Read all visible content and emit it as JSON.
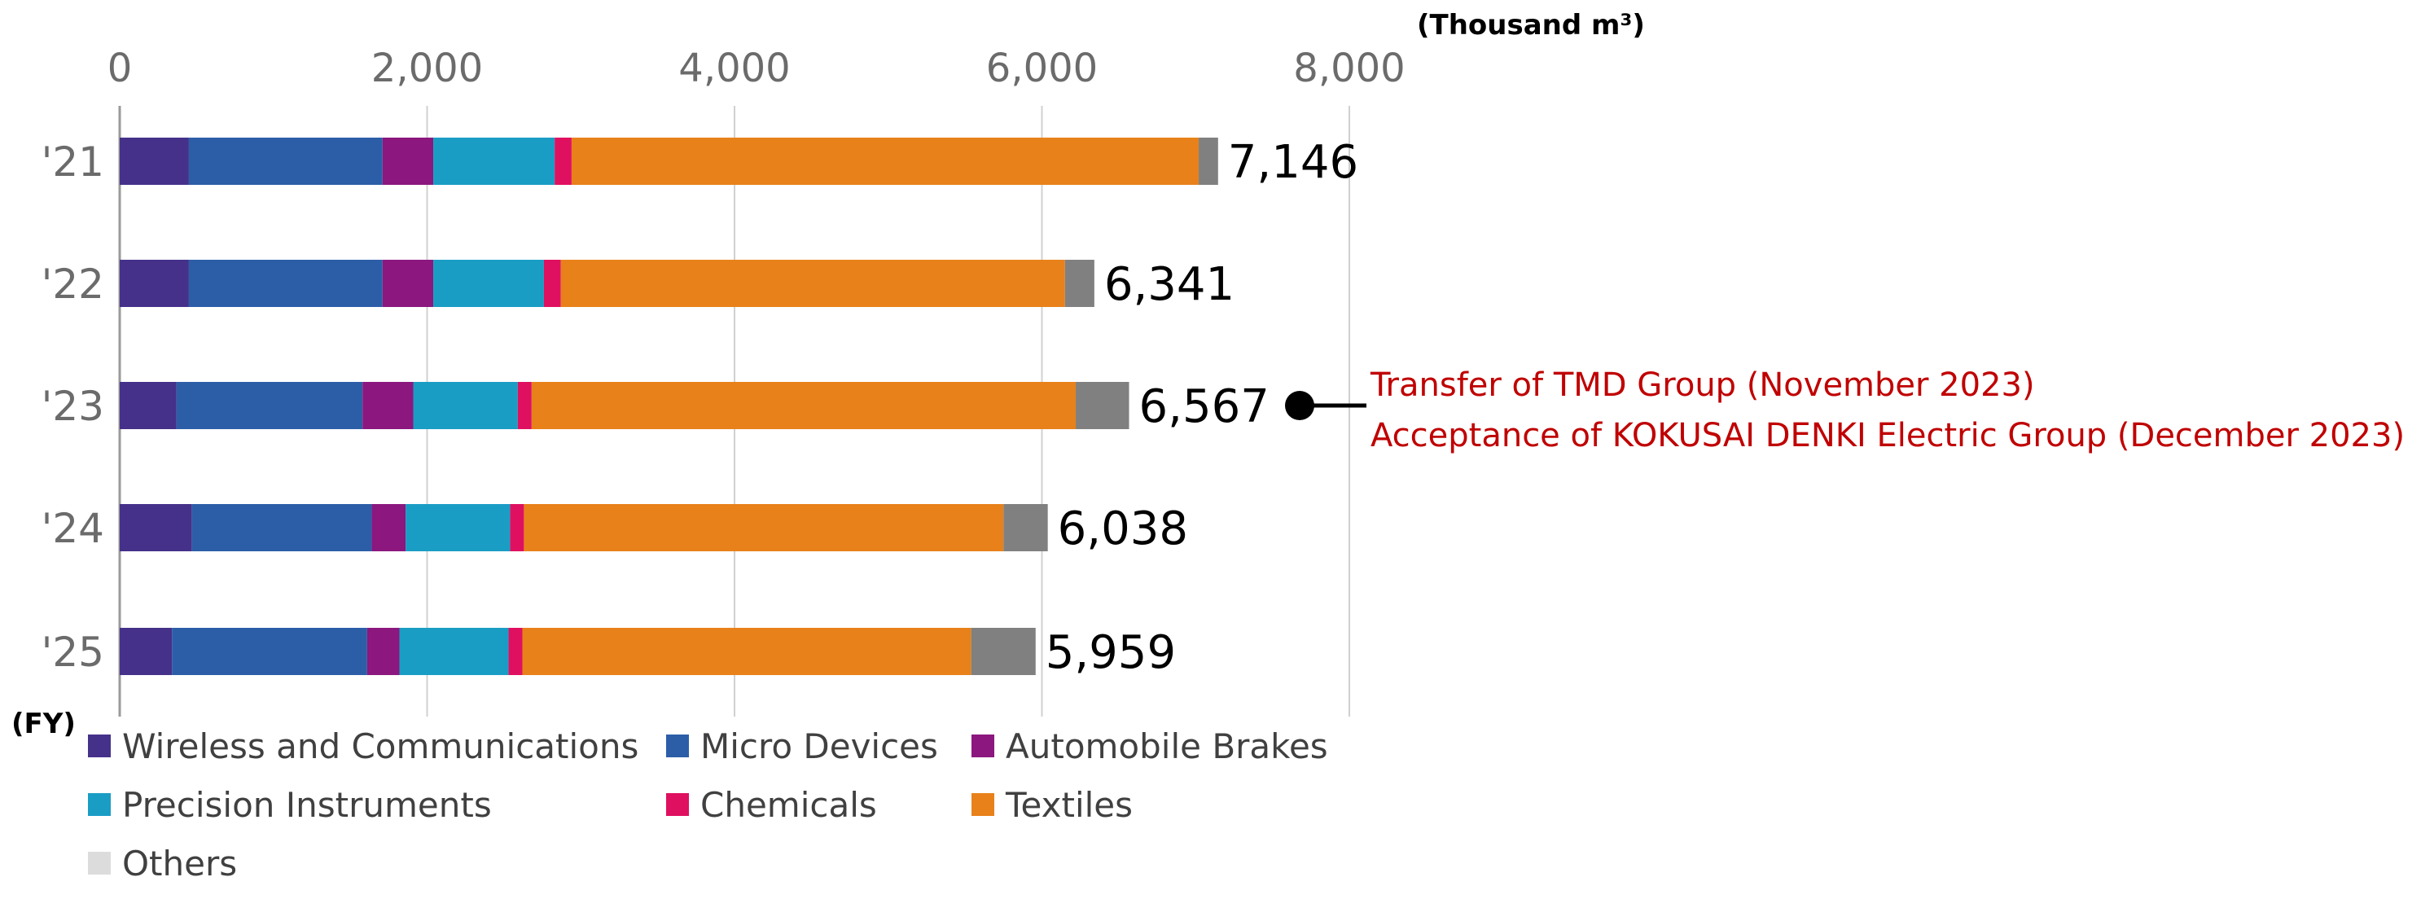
{
  "chart_data": {
    "type": "bar",
    "orientation": "horizontal",
    "stacked": true,
    "unit": "(Thousand m³)",
    "ylabel": "(FY)",
    "categories": [
      "'21",
      "'22",
      "'23",
      "'24",
      "'25"
    ],
    "xlim": [
      0,
      8000
    ],
    "x_ticks": [
      0,
      2000,
      4000,
      6000,
      8000
    ],
    "x_tick_labels": [
      "0",
      "2,000",
      "4,000",
      "6,000",
      "8,000"
    ],
    "grid": true,
    "legend_position": "bottom",
    "series": [
      {
        "name": "Wireless and Communications",
        "color": "#45318a",
        "values": [
          450,
          450,
          370,
          470,
          340
        ]
      },
      {
        "name": "Micro Devices",
        "color": "#2c5ea8",
        "values": [
          1260,
          1260,
          1210,
          1170,
          1270
        ]
      },
      {
        "name": "Automobile Brakes",
        "color": "#8b177f",
        "values": [
          330,
          330,
          330,
          220,
          210
        ]
      },
      {
        "name": "Precision Instruments",
        "color": "#1a9dc5",
        "values": [
          790,
          720,
          680,
          680,
          710
        ]
      },
      {
        "name": "Chemicals",
        "color": "#e01060",
        "values": [
          110,
          110,
          90,
          90,
          90
        ]
      },
      {
        "name": "Textiles",
        "color": "#e8811a",
        "values": [
          4080,
          3280,
          3540,
          3120,
          2920
        ]
      },
      {
        "name": "Others",
        "color": "#808080",
        "legend_color": "#dcdcdc",
        "values": [
          126,
          191,
          347,
          288,
          419
        ]
      }
    ],
    "totals": [
      7146,
      6341,
      6567,
      6038,
      5959
    ],
    "total_labels": [
      "7,146",
      "6,341",
      "6,567",
      "6,038",
      "5,959"
    ],
    "annotation": {
      "category_index": 2,
      "lines": [
        "Transfer of TMD Group (November 2023)",
        "Acceptance of KOKUSAI DENKI Electric Group (December 2023)"
      ],
      "color": "#c00000"
    }
  }
}
